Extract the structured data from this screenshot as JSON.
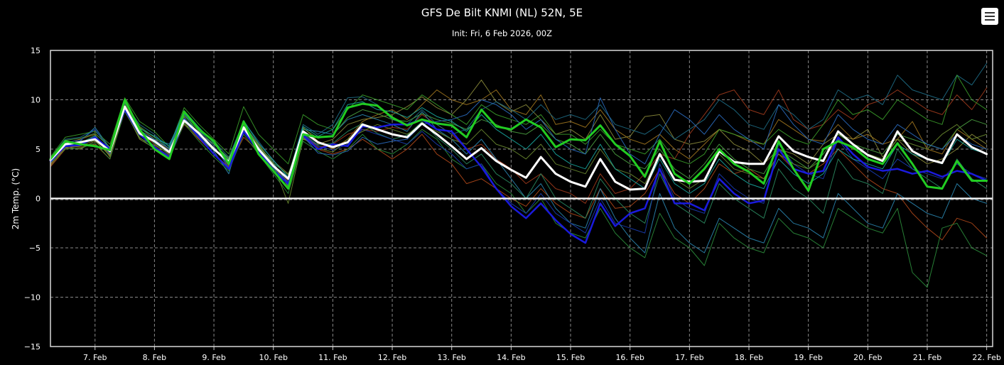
{
  "chart_data": {
    "type": "line",
    "title": "GFS De Bilt KNMI (NL) 52N, 5E",
    "subtitle": "Init: Fri, 6 Feb 2026, 00Z",
    "ylabel": "2m Temp. (°C)",
    "xlabel": "",
    "ylim": [
      -15,
      15
    ],
    "yticks": [
      15,
      10,
      5,
      0,
      -5,
      -10,
      -15
    ],
    "ytick_labels": [
      "15",
      "10",
      "5",
      "0",
      "−5",
      "−10",
      "−15"
    ],
    "xlim": [
      6.25,
      22.1
    ],
    "xtick_values": [
      7,
      8,
      9,
      10,
      11,
      12,
      13,
      14,
      15,
      16,
      17,
      18,
      19,
      20,
      21,
      22
    ],
    "xtick_labels": [
      "7. Feb",
      "8. Feb",
      "9. Feb",
      "10. Feb",
      "11. Feb",
      "12. Feb",
      "13. Feb",
      "14. Feb",
      "15. Feb",
      "16. Feb",
      "17. Feb",
      "18. Feb",
      "19. Feb",
      "20. Feb",
      "21. Feb",
      "22. Feb"
    ],
    "grid": true,
    "legend": "none",
    "x": [
      6.25,
      6.5,
      6.75,
      7.0,
      7.25,
      7.5,
      7.75,
      8.0,
      8.25,
      8.5,
      8.75,
      9.0,
      9.25,
      9.5,
      9.75,
      10.0,
      10.25,
      10.5,
      10.75,
      11.0,
      11.25,
      11.5,
      11.75,
      12.0,
      12.25,
      12.5,
      12.75,
      13.0,
      13.25,
      13.5,
      13.75,
      14.0,
      14.25,
      14.5,
      14.75,
      15.0,
      15.25,
      15.5,
      15.75,
      16.0,
      16.25,
      16.5,
      16.75,
      17.0,
      17.25,
      17.5,
      17.75,
      18.0,
      18.25,
      18.5,
      18.75,
      19.0,
      19.25,
      19.5,
      19.75,
      20.0,
      20.25,
      20.5,
      20.75,
      21.0,
      21.25,
      21.5,
      21.75,
      22.0
    ],
    "series": [
      {
        "color": "#ffffff",
        "width": 3,
        "values": [
          3.9,
          5.5,
          5.7,
          6.0,
          4.8,
          9.3,
          6.6,
          5.8,
          4.7,
          7.9,
          6.6,
          5.0,
          3.7,
          7.2,
          5.0,
          3.3,
          2.0,
          6.8,
          5.7,
          5.2,
          5.7,
          7.5,
          7.0,
          6.5,
          6.2,
          7.6,
          6.5,
          5.3,
          4.0,
          5.1,
          3.8,
          2.9,
          2.1,
          4.2,
          2.5,
          1.7,
          1.2,
          4.0,
          1.7,
          0.9,
          1.0,
          4.5,
          1.9,
          1.7,
          1.8,
          4.8,
          3.7,
          3.5,
          3.5,
          6.3,
          4.8,
          4.2,
          3.8,
          6.8,
          5.5,
          4.4,
          3.8,
          6.8,
          4.8,
          4.0,
          3.6,
          6.5,
          5.2,
          4.5
        ]
      },
      {
        "color": "#22cc22",
        "width": 3,
        "values": [
          4.0,
          5.8,
          5.5,
          5.3,
          4.9,
          10.0,
          7.0,
          5.0,
          4.0,
          8.8,
          7.0,
          5.8,
          3.5,
          7.8,
          4.5,
          2.8,
          1.0,
          6.5,
          6.2,
          6.3,
          9.2,
          9.6,
          9.4,
          8.2,
          7.4,
          8.0,
          7.6,
          7.4,
          6.2,
          9.0,
          7.3,
          7.0,
          8.0,
          7.2,
          5.2,
          6.0,
          5.9,
          7.4,
          5.5,
          4.3,
          2.2,
          5.8,
          2.5,
          1.5,
          3.0,
          5.0,
          3.5,
          2.7,
          1.5,
          5.8,
          3.0,
          0.8,
          5.0,
          5.8,
          5.2,
          4.0,
          3.5,
          5.6,
          3.5,
          1.2,
          1.0,
          3.8,
          1.8,
          1.8
        ]
      },
      {
        "color": "#1a1adc",
        "width": 2.5,
        "values": [
          3.8,
          5.3,
          5.4,
          6.2,
          5.0,
          9.0,
          6.5,
          5.2,
          4.2,
          8.0,
          6.2,
          4.5,
          3.0,
          6.8,
          4.8,
          2.8,
          1.5,
          6.4,
          5.0,
          5.5,
          5.3,
          7.3,
          7.2,
          7.5,
          7.5,
          8.0,
          7.0,
          6.8,
          5.0,
          3.2,
          1.0,
          -0.8,
          -2.0,
          -0.5,
          -2.2,
          -3.6,
          -4.5,
          -0.5,
          -2.8,
          -1.5,
          -1.0,
          3.0,
          -0.5,
          -0.5,
          -1.2,
          2.0,
          0.5,
          -0.5,
          -0.2,
          5.0,
          3.0,
          2.5,
          2.8,
          6.2,
          4.5,
          3.2,
          2.8,
          3.0,
          2.5,
          2.8,
          2.2,
          2.8,
          2.5,
          1.8
        ]
      },
      {
        "color": "#8a8a3a",
        "width": 1,
        "values": [
          3.5,
          5.2,
          5.0,
          5.8,
          4.4,
          9.0,
          6.0,
          5.1,
          4.8,
          7.5,
          6.5,
          5.5,
          4.0,
          6.8,
          5.2,
          3.8,
          2.5,
          6.0,
          5.5,
          6.0,
          7.5,
          8.0,
          8.2,
          8.5,
          9.3,
          10.3,
          9.2,
          8.5,
          10.0,
          12.0,
          9.8,
          8.8,
          9.5,
          8.0,
          6.5,
          7.0,
          6.0,
          8.5,
          6.0,
          6.3,
          8.3,
          8.5,
          6.0,
          5.5,
          5.8,
          7.0,
          5.5,
          4.8,
          3.5,
          5.0,
          4.5,
          3.5,
          5.5,
          6.5,
          6.0,
          7.0,
          4.2,
          6.0,
          4.5,
          3.5,
          4.0,
          5.0,
          6.5,
          5.5
        ]
      },
      {
        "color": "#a0761e",
        "width": 1,
        "values": [
          3.7,
          5.6,
          6.0,
          6.5,
          4.2,
          9.5,
          7.2,
          6.0,
          4.9,
          8.3,
          6.0,
          5.2,
          3.3,
          7.5,
          5.5,
          3.5,
          1.2,
          7.2,
          5.8,
          5.0,
          6.0,
          7.8,
          8.5,
          9.0,
          8.0,
          9.5,
          11.0,
          10.0,
          9.5,
          10.0,
          11.0,
          9.0,
          8.5,
          10.5,
          7.5,
          7.8,
          7.2,
          9.0,
          7.0,
          6.0,
          5.5,
          6.5,
          5.0,
          4.0,
          5.5,
          7.0,
          6.5,
          5.8,
          5.5,
          8.0,
          7.0,
          6.0,
          5.8,
          7.5,
          6.0,
          6.5,
          5.5,
          6.0,
          7.8,
          5.0,
          4.5,
          7.0,
          6.0,
          5.0
        ]
      },
      {
        "color": "#a03a1c",
        "width": 1,
        "values": [
          3.2,
          5.0,
          5.5,
          6.0,
          4.6,
          9.2,
          6.8,
          5.5,
          4.5,
          8.0,
          6.3,
          5.0,
          3.8,
          7.0,
          5.0,
          3.0,
          1.8,
          6.5,
          5.2,
          5.5,
          6.5,
          7.0,
          6.8,
          7.2,
          7.0,
          8.5,
          7.5,
          6.5,
          5.0,
          5.5,
          4.0,
          3.0,
          1.5,
          2.5,
          1.0,
          0.5,
          -0.5,
          2.5,
          0.5,
          1.0,
          2.5,
          4.5,
          4.0,
          6.5,
          8.5,
          10.5,
          11.0,
          9.0,
          8.5,
          11.0,
          8.0,
          7.0,
          7.5,
          9.0,
          8.0,
          9.5,
          10.0,
          11.0,
          10.0,
          9.0,
          8.5,
          10.5,
          9.0,
          11.2
        ]
      },
      {
        "color": "#b0481a",
        "width": 1,
        "values": [
          3.4,
          5.3,
          5.2,
          5.5,
          4.0,
          9.0,
          6.4,
          5.3,
          4.3,
          7.5,
          6.0,
          4.5,
          3.2,
          6.2,
          4.8,
          3.2,
          1.6,
          6.2,
          5.0,
          4.5,
          5.0,
          6.0,
          5.0,
          4.0,
          5.0,
          6.5,
          4.5,
          3.5,
          1.5,
          2.0,
          1.0,
          0.0,
          -0.8,
          1.0,
          -0.5,
          -1.5,
          -2.0,
          1.0,
          -1.0,
          -0.8,
          0.5,
          3.0,
          0.5,
          -0.5,
          1.0,
          3.5,
          2.5,
          3.0,
          2.0,
          4.5,
          3.0,
          2.5,
          3.5,
          5.0,
          3.5,
          2.0,
          1.0,
          0.5,
          -1.5,
          -3.0,
          -4.2,
          -2.0,
          -2.5,
          -4.0
        ]
      },
      {
        "color": "#1e6d86",
        "width": 1,
        "values": [
          4.1,
          6.0,
          6.2,
          7.0,
          5.0,
          9.6,
          7.5,
          6.5,
          5.0,
          8.5,
          7.0,
          5.8,
          4.2,
          7.8,
          5.8,
          3.8,
          2.2,
          7.5,
          6.5,
          7.5,
          10.2,
          10.3,
          9.5,
          8.0,
          7.5,
          9.0,
          7.5,
          6.5,
          7.0,
          9.0,
          9.8,
          9.0,
          8.0,
          9.5,
          8.0,
          8.5,
          8.0,
          9.5,
          7.5,
          7.0,
          6.5,
          7.5,
          6.0,
          7.0,
          8.0,
          10.0,
          9.0,
          7.5,
          7.0,
          9.5,
          8.5,
          7.0,
          8.0,
          11.0,
          10.0,
          10.5,
          9.5,
          12.5,
          11.0,
          10.5,
          10.0,
          12.5,
          11.5,
          13.7
        ]
      },
      {
        "color": "#2a86b0",
        "width": 1,
        "values": [
          3.9,
          5.5,
          5.8,
          7.2,
          5.1,
          9.2,
          6.9,
          6.0,
          5.5,
          8.6,
          6.4,
          4.8,
          2.5,
          7.6,
          5.2,
          3.6,
          1.5,
          7.0,
          6.8,
          6.5,
          8.0,
          8.5,
          8.0,
          7.5,
          6.8,
          8.8,
          7.0,
          6.0,
          4.5,
          6.0,
          4.0,
          2.0,
          0.0,
          1.5,
          -1.0,
          -2.5,
          -3.0,
          1.0,
          -2.0,
          -4.0,
          -5.5,
          0.5,
          -3.0,
          -4.5,
          -5.5,
          -2.0,
          -3.0,
          -4.0,
          -4.5,
          -1.0,
          -2.5,
          -3.0,
          -4.0,
          0.5,
          -1.0,
          -2.5,
          -3.0,
          0.5,
          -0.5,
          -1.5,
          -2.0,
          1.5,
          0.0,
          -0.5
        ]
      },
      {
        "color": "#2b8c3b",
        "width": 1,
        "values": [
          3.6,
          5.0,
          5.1,
          5.6,
          4.0,
          8.8,
          6.2,
          5.0,
          4.0,
          7.6,
          5.8,
          4.2,
          2.8,
          6.5,
          4.5,
          2.5,
          0.5,
          5.8,
          4.8,
          4.0,
          5.0,
          6.5,
          5.0,
          4.5,
          5.5,
          7.0,
          6.0,
          4.0,
          3.0,
          3.5,
          1.5,
          0.5,
          -1.5,
          0.0,
          -2.5,
          -3.5,
          -4.0,
          -1.0,
          -3.5,
          -5.0,
          -6.0,
          -1.5,
          -4.0,
          -5.0,
          -6.8,
          -2.5,
          -4.0,
          -5.0,
          -5.5,
          -2.0,
          -3.5,
          -4.0,
          -5.0,
          -1.0,
          -2.0,
          -3.0,
          -3.5,
          -1.0,
          -7.5,
          -9.0,
          -3.0,
          -2.5,
          -5.0,
          -5.8
        ]
      },
      {
        "color": "#3a9c2a",
        "width": 1,
        "values": [
          4.2,
          6.2,
          6.5,
          6.8,
          5.5,
          10.2,
          7.8,
          6.8,
          5.2,
          9.2,
          7.5,
          6.0,
          4.5,
          9.3,
          6.5,
          5.0,
          3.5,
          8.5,
          7.5,
          7.0,
          9.0,
          10.5,
          10.0,
          9.5,
          9.0,
          10.5,
          9.5,
          8.5,
          7.5,
          9.5,
          8.5,
          8.0,
          7.5,
          8.5,
          6.5,
          6.5,
          5.5,
          7.0,
          5.5,
          5.0,
          4.5,
          6.0,
          4.0,
          3.5,
          4.5,
          7.0,
          6.5,
          6.0,
          5.5,
          7.0,
          6.0,
          5.5,
          7.5,
          10.0,
          8.5,
          9.0,
          8.0,
          10.0,
          9.0,
          8.0,
          7.5,
          12.5,
          10.0,
          9.0
        ]
      },
      {
        "color": "#2a8a60",
        "width": 1,
        "values": [
          3.8,
          5.4,
          5.6,
          6.4,
          4.7,
          9.4,
          7.0,
          5.6,
          4.4,
          8.2,
          6.6,
          5.0,
          3.6,
          7.4,
          4.9,
          3.1,
          1.4,
          6.6,
          5.4,
          5.6,
          6.8,
          7.6,
          6.6,
          6.0,
          6.4,
          7.8,
          6.2,
          5.0,
          3.5,
          4.5,
          2.5,
          1.5,
          0.0,
          2.5,
          0.0,
          -1.0,
          -2.0,
          2.0,
          0.0,
          -1.5,
          -2.5,
          2.5,
          -0.5,
          -1.5,
          -2.5,
          1.5,
          0.0,
          -1.0,
          -2.0,
          3.0,
          1.0,
          0.0,
          -1.5,
          4.0,
          2.0,
          1.5,
          0.5,
          5.0,
          3.0,
          2.0,
          1.0,
          4.0,
          2.0,
          1.0
        ]
      },
      {
        "color": "#1a3cb0",
        "width": 1,
        "values": [
          3.7,
          5.7,
          5.9,
          7.0,
          4.9,
          9.1,
          6.6,
          5.7,
          4.9,
          8.1,
          6.5,
          5.1,
          3.4,
          6.9,
          5.1,
          3.0,
          1.7,
          6.5,
          5.3,
          4.9,
          5.5,
          7.0,
          6.5,
          6.0,
          5.5,
          6.8,
          5.5,
          4.5,
          3.0,
          3.5,
          1.0,
          -0.5,
          -1.5,
          0.5,
          -1.5,
          -2.5,
          -3.5,
          0.0,
          -2.5,
          -3.0,
          -3.5,
          3.5,
          0.0,
          -1.0,
          -1.5,
          2.5,
          1.0,
          0.0,
          -0.5,
          5.5,
          3.5,
          2.5,
          2.0,
          6.0,
          4.0,
          3.0,
          2.0,
          4.0,
          3.0,
          2.5,
          2.0,
          3.5,
          2.5,
          2.0
        ]
      },
      {
        "color": "#6a8a30",
        "width": 1,
        "values": [
          3.3,
          5.1,
          5.3,
          5.9,
          4.3,
          8.9,
          6.1,
          5.4,
          4.6,
          7.7,
          6.1,
          4.9,
          3.9,
          7.3,
          5.3,
          3.4,
          -0.5,
          6.1,
          5.1,
          4.7,
          6.0,
          6.8,
          7.5,
          7.0,
          6.5,
          7.5,
          6.8,
          6.0,
          5.5,
          7.0,
          5.5,
          5.0,
          4.0,
          5.5,
          3.5,
          3.0,
          2.5,
          5.0,
          3.0,
          2.5,
          1.5,
          4.5,
          2.0,
          1.0,
          2.0,
          4.5,
          3.0,
          2.5,
          2.0,
          4.5,
          3.5,
          3.0,
          4.0,
          6.0,
          5.0,
          4.5,
          4.0,
          6.0,
          5.5,
          5.0,
          6.5,
          7.5,
          6.0,
          6.5
        ]
      },
      {
        "color": "#4aa040",
        "width": 1,
        "values": [
          4.0,
          5.9,
          6.1,
          6.6,
          5.2,
          9.7,
          7.3,
          6.2,
          5.0,
          8.4,
          6.8,
          5.5,
          4.1,
          7.6,
          5.4,
          3.6,
          2.4,
          7.1,
          6.1,
          6.4,
          8.2,
          9.0,
          8.6,
          8.0,
          7.8,
          8.6,
          8.0,
          7.6,
          7.0,
          8.0,
          7.5,
          6.8,
          6.5,
          7.5,
          6.0,
          5.5,
          4.5,
          6.5,
          4.5,
          3.5,
          3.0,
          5.0,
          3.0,
          2.0,
          3.5,
          5.5,
          4.0,
          3.0,
          2.5,
          5.0,
          4.0,
          3.0,
          4.5,
          6.5,
          5.5,
          5.0,
          4.5,
          6.5,
          6.0,
          5.5,
          5.0,
          7.0,
          8.0,
          7.5
        ]
      },
      {
        "color": "#2a6cc0",
        "width": 1,
        "values": [
          3.6,
          5.4,
          5.4,
          6.1,
          4.5,
          9.3,
          6.7,
          5.9,
          5.1,
          8.7,
          6.9,
          5.3,
          3.1,
          7.1,
          4.7,
          3.2,
          1.3,
          6.3,
          4.6,
          4.4,
          4.8,
          6.2,
          5.5,
          5.8,
          6.0,
          7.5,
          7.8,
          8.0,
          8.5,
          10.0,
          9.5,
          8.5,
          7.0,
          8.0,
          6.0,
          5.0,
          4.5,
          10.2,
          7.0,
          4.5,
          3.5,
          6.5,
          9.0,
          8.0,
          6.5,
          8.5,
          7.0,
          6.0,
          5.0,
          9.5,
          7.5,
          6.0,
          5.5,
          8.5,
          7.0,
          6.0,
          5.5,
          7.5,
          6.5,
          5.5,
          5.0,
          6.5,
          5.5,
          5.0
        ]
      },
      {
        "color": "#18a8a0",
        "width": 1,
        "values": [
          3.9,
          5.6,
          5.5,
          6.3,
          4.8,
          9.8,
          7.1,
          6.3,
          5.3,
          8.9,
          7.2,
          5.6,
          3.9,
          7.9,
          5.6,
          3.9,
          2.1,
          7.3,
          6.3,
          7.0,
          9.5,
          9.8,
          9.0,
          8.8,
          8.2,
          9.2,
          8.3,
          7.8,
          6.8,
          8.5,
          7.0,
          6.0,
          5.0,
          6.5,
          4.5,
          3.5,
          3.0,
          5.5,
          3.0,
          2.0,
          1.0,
          4.0,
          1.5,
          0.5,
          1.5,
          4.0,
          2.5,
          1.5,
          1.0,
          4.0,
          2.5,
          1.5,
          2.5,
          5.0,
          4.0,
          3.5,
          3.0,
          5.5,
          4.5,
          4.0,
          3.5,
          6.0,
          5.0,
          4.5
        ]
      }
    ]
  }
}
